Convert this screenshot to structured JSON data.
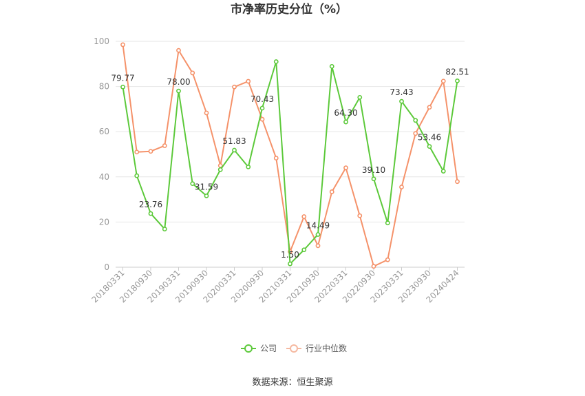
{
  "chart_data": {
    "type": "line",
    "title": "市净率历史分位（%）",
    "source": "数据来源：恒生聚源",
    "ylim": [
      0,
      100
    ],
    "yticks": [
      "0",
      "20",
      "40",
      "60",
      "80",
      "100"
    ],
    "x": [
      "20180331",
      "20180630",
      "20180930",
      "20181231",
      "20190331",
      "20190630",
      "20190930",
      "20191231",
      "20200331",
      "20200630",
      "20200930",
      "20201231",
      "20210331",
      "20210630",
      "20210930",
      "20211231",
      "20220331",
      "20220630",
      "20220930",
      "20221231",
      "20230331",
      "20230630",
      "20230930",
      "20231231",
      "20240424"
    ],
    "xtick_labels": [
      "20180331",
      "20180930",
      "20190331",
      "20190930",
      "20200331",
      "20200930",
      "20210331",
      "20210930",
      "20220331",
      "20220930",
      "20230331",
      "20230930",
      "20240424"
    ],
    "series": [
      {
        "name": "公司",
        "color": "#5cc93a",
        "values": [
          79.77,
          40.5,
          23.76,
          16.9,
          78.0,
          37.0,
          31.59,
          43.2,
          51.83,
          44.4,
          70.43,
          91.0,
          1.5,
          7.7,
          14.49,
          88.9,
          64.3,
          75.2,
          39.1,
          19.6,
          73.43,
          65.0,
          53.46,
          42.5,
          82.51
        ],
        "labels": [
          "79.77",
          "",
          "23.76",
          "",
          "78.00",
          "",
          "31.59",
          "",
          "51.83",
          "",
          "70.43",
          "",
          "1.50",
          "",
          "14.49",
          "",
          "64.30",
          "",
          "39.10",
          "",
          "73.43",
          "",
          "53.46",
          "",
          "82.51"
        ]
      },
      {
        "name": "行业中位数",
        "color": "#f5926a",
        "values": [
          98.5,
          51.0,
          51.3,
          53.8,
          96.0,
          86.0,
          68.3,
          45.0,
          79.8,
          82.3,
          65.5,
          48.3,
          6.9,
          22.4,
          9.5,
          33.4,
          44.0,
          22.8,
          0.4,
          3.3,
          35.5,
          59.2,
          70.8,
          82.4,
          37.9
        ]
      }
    ],
    "legend_position": "bottom"
  }
}
